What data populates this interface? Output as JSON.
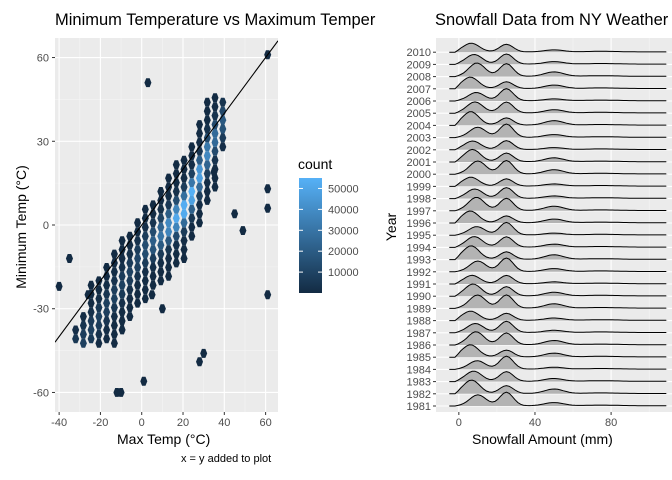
{
  "chart_data": [
    {
      "type": "hexbin",
      "title": "Minimum Temperature vs Maximum Temperature",
      "xlabel": "Max Temp (°C)",
      "ylabel": "Minimum Temp (°C)",
      "xlim": [
        -42,
        66
      ],
      "ylim": [
        -67,
        67
      ],
      "x_ticks": [
        -40,
        -20,
        0,
        20,
        40,
        60
      ],
      "y_ticks": [
        -60,
        -30,
        0,
        30,
        60
      ],
      "x_tick_labels": [
        "-40",
        "-20",
        "0",
        "20",
        "40",
        "60"
      ],
      "y_tick_labels": [
        "-60",
        "-30",
        "0",
        "30",
        "60"
      ],
      "reference_line": "x = y",
      "caption": "x = y added to plot",
      "grid": true,
      "legend": {
        "title": "count",
        "position": "right",
        "range": [
          0,
          55000
        ],
        "breaks": [
          10000,
          20000,
          30000,
          40000,
          50000
        ],
        "break_labels": [
          "10000",
          "20000",
          "30000",
          "40000",
          "50000"
        ],
        "color_low": "#132b43",
        "color_high": "#56b1f7"
      },
      "core_ridge": {
        "x": [
          -25,
          -10,
          0,
          10,
          20,
          25,
          28,
          32
        ],
        "y": [
          -38,
          -22,
          -10,
          -3,
          5,
          12,
          18,
          26
        ],
        "peak_count": 55000
      },
      "outliers": [
        {
          "x": 3,
          "y": 51
        },
        {
          "x": 61,
          "y": 61
        },
        {
          "x": -40,
          "y": -22
        },
        {
          "x": -35,
          "y": -12
        },
        {
          "x": -12,
          "y": -60
        },
        {
          "x": -10,
          "y": -60
        },
        {
          "x": 1,
          "y": -56
        },
        {
          "x": 28,
          "y": -49
        },
        {
          "x": 30,
          "y": -46
        },
        {
          "x": 61,
          "y": -25
        },
        {
          "x": 61,
          "y": 13
        },
        {
          "x": 61,
          "y": 6
        },
        {
          "x": 49,
          "y": -2
        },
        {
          "x": 45,
          "y": 4
        },
        {
          "x": 35,
          "y": 19
        },
        {
          "x": -26,
          "y": -25
        },
        {
          "x": 10,
          "y": -30
        },
        {
          "x": 5,
          "y": -25
        }
      ]
    },
    {
      "type": "ridgeline",
      "title": "Snowfall Data from NY Weather",
      "xlabel": "Snowfall Amount (mm)",
      "ylabel": "Year",
      "xlim": [
        -12,
        112
      ],
      "x_ticks": [
        0,
        40,
        80
      ],
      "x_tick_labels": [
        "0",
        "40",
        "80"
      ],
      "categories": [
        "1981",
        "1982",
        "1983",
        "1984",
        "1985",
        "1986",
        "1987",
        "1988",
        "1989",
        "1990",
        "1991",
        "1992",
        "1993",
        "1994",
        "1995",
        "1996",
        "1997",
        "1998",
        "1999",
        "2000",
        "2001",
        "2002",
        "2003",
        "2004",
        "2005",
        "2006",
        "2007",
        "2008",
        "2009",
        "2010"
      ],
      "fill": "#b3b3b3",
      "grid": true
    }
  ]
}
